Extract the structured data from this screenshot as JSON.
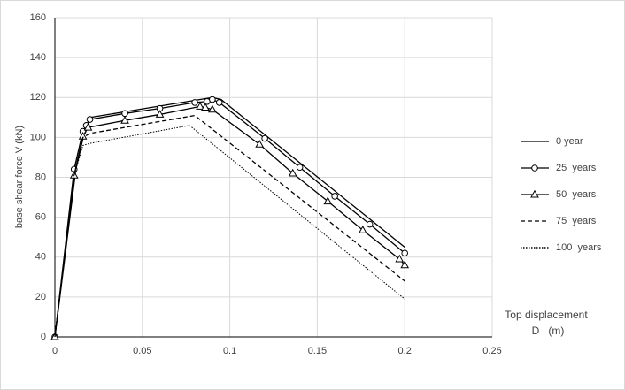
{
  "chart_data": {
    "type": "line",
    "ylabel": "base shear force   V  (kN)",
    "xlabel": [
      "Top displacement",
      "D   (m)"
    ],
    "xlim": [
      0,
      0.25
    ],
    "xticks": [
      0,
      0.05,
      0.1,
      0.15,
      0.2,
      0.25
    ],
    "ylim": [
      0,
      160
    ],
    "yticks": [
      0,
      20,
      40,
      60,
      80,
      100,
      120,
      140,
      160
    ],
    "grid": true,
    "legend": "right",
    "series": [
      {
        "name": "0 year",
        "color": "#000000",
        "style": "solid",
        "marker": "none",
        "x": [
          0,
          0.012,
          0.017,
          0.02,
          0.09,
          0.095,
          0.2
        ],
        "values": [
          0,
          84,
          103,
          110,
          120,
          119,
          45
        ]
      },
      {
        "name": "25  years",
        "color": "#000000",
        "style": "solid",
        "marker": "circle",
        "x": [
          0,
          0.011,
          0.016,
          0.018,
          0.02,
          0.04,
          0.06,
          0.08,
          0.087,
          0.09,
          0.094,
          0.12,
          0.14,
          0.16,
          0.18,
          0.2
        ],
        "values": [
          0,
          84,
          103,
          106,
          109,
          112,
          114.5,
          117.5,
          118,
          119,
          117.5,
          99.5,
          85,
          70.5,
          56.5,
          42
        ]
      },
      {
        "name": "50  years",
        "color": "#000000",
        "style": "solid",
        "marker": "triangle",
        "x": [
          0,
          0.011,
          0.016,
          0.019,
          0.04,
          0.06,
          0.083,
          0.086,
          0.09,
          0.117,
          0.136,
          0.156,
          0.176,
          0.197,
          0.2
        ],
        "values": [
          0,
          81,
          100.5,
          105,
          108.5,
          111.5,
          115.5,
          115,
          114,
          96.5,
          82,
          68,
          53.5,
          39,
          36
        ]
      },
      {
        "name": "75  years",
        "color": "#000000",
        "style": "dashed",
        "marker": "none",
        "x": [
          0,
          0.011,
          0.016,
          0.02,
          0.08,
          0.2
        ],
        "values": [
          0,
          81,
          100,
          102,
          111,
          28
        ]
      },
      {
        "name": "100  years",
        "color": "#000000",
        "style": "dotted",
        "marker": "none",
        "x": [
          0,
          0.011,
          0.016,
          0.02,
          0.077,
          0.2
        ],
        "values": [
          0,
          81,
          96,
          97,
          106,
          19
        ]
      }
    ]
  }
}
